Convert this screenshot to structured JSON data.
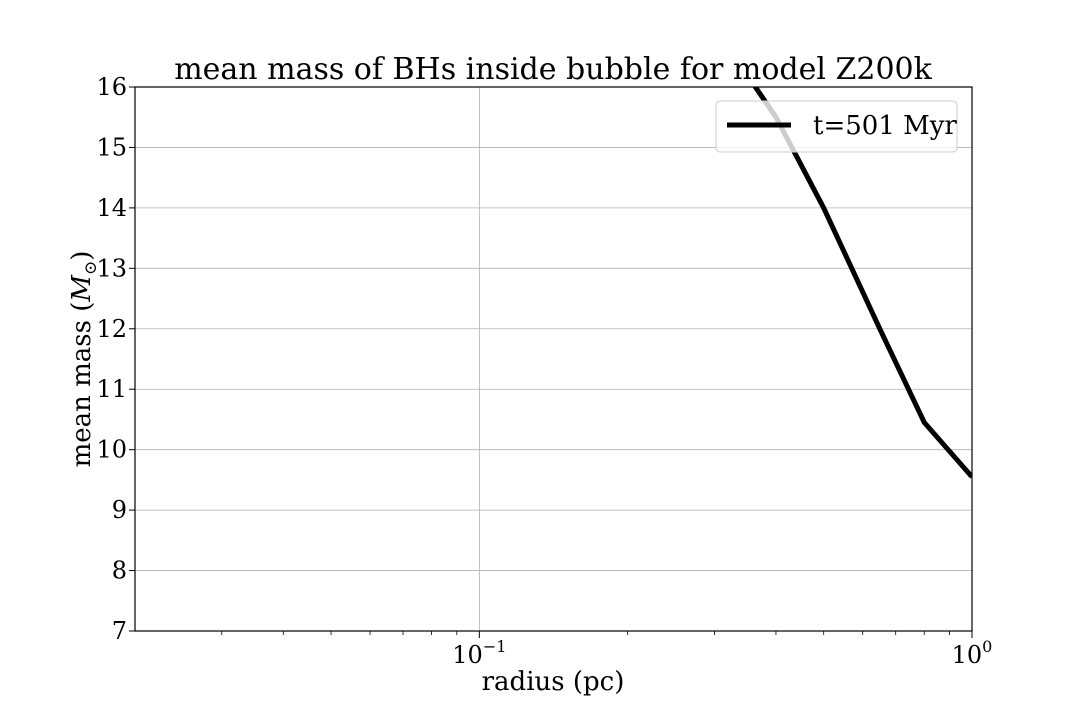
{
  "chart_data": {
    "type": "line",
    "title": "mean mass of BHs inside bubble for model Z200k",
    "xlabel": "radius (pc)",
    "ylabel": "mean mass",
    "ylabel_unit": "M",
    "ylabel_unit_sub": "⊙",
    "x_scale": "log",
    "xlim": [
      0.02,
      1.0
    ],
    "ylim": [
      7,
      16
    ],
    "grid": true,
    "legend_position": "upper right",
    "x_major_ticks": [
      {
        "value": 0.1,
        "base": "10",
        "exp": "−1"
      },
      {
        "value": 1.0,
        "base": "10",
        "exp": "0"
      }
    ],
    "y_ticks": [
      7,
      8,
      9,
      10,
      11,
      12,
      13,
      14,
      15,
      16
    ],
    "series": [
      {
        "name": "t=501 Myr",
        "color": "#000000",
        "x": [
          0.33,
          0.4,
          0.5,
          0.65,
          0.8,
          1.0
        ],
        "y": [
          16.5,
          15.5,
          14.0,
          12.0,
          10.45,
          9.55
        ]
      }
    ]
  }
}
